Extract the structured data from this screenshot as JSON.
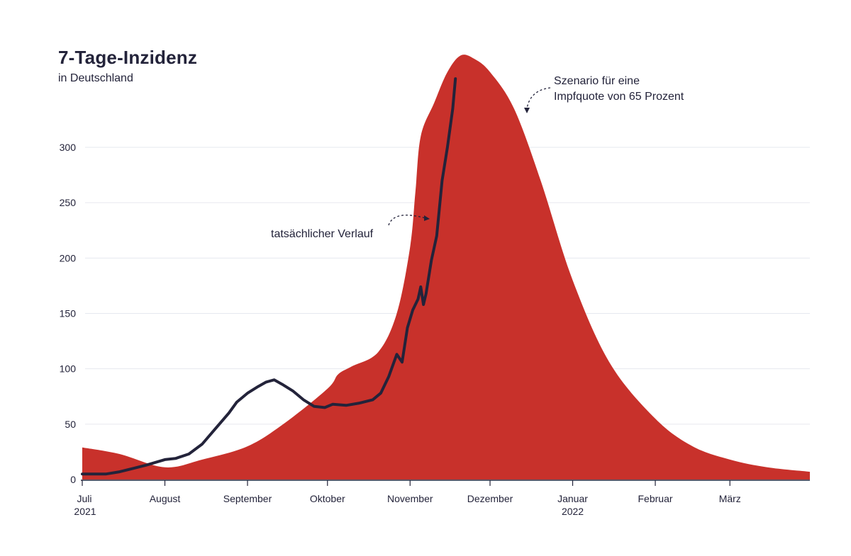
{
  "title": "7-Tage-Inzidenz",
  "subtitle": "in Deutschland",
  "annotations": {
    "scenario_line1": "Szenario für eine",
    "scenario_line2": "Impfquote von 65 Prozent",
    "actual": "tatsächlicher Verlauf"
  },
  "colors": {
    "scenario_area": "#c8312b",
    "actual_line": "#23233a",
    "grid": "#e6e8ef",
    "axis": "#23233a"
  },
  "chart_data": {
    "type": "area",
    "title": "7-Tage-Inzidenz",
    "subtitle": "in Deutschland",
    "x_axis": {
      "start": "2021-07-01",
      "end": "2022-03-31",
      "ticks": [
        {
          "label": "Juli",
          "sublabel": "2021",
          "date": "2021-07-01"
        },
        {
          "label": "August",
          "sublabel": "",
          "date": "2021-08-01"
        },
        {
          "label": "September",
          "sublabel": "",
          "date": "2021-09-01"
        },
        {
          "label": "Oktober",
          "sublabel": "",
          "date": "2021-10-01"
        },
        {
          "label": "November",
          "sublabel": "",
          "date": "2021-11-01"
        },
        {
          "label": "Dezember",
          "sublabel": "",
          "date": "2021-12-01"
        },
        {
          "label": "Januar",
          "sublabel": "2022",
          "date": "2022-01-01"
        },
        {
          "label": "Februar",
          "sublabel": "",
          "date": "2022-02-01"
        },
        {
          "label": "März",
          "sublabel": "",
          "date": "2022-03-01"
        }
      ]
    },
    "y_axis": {
      "min": 0,
      "max": 385,
      "ticks": [
        0,
        50,
        100,
        150,
        200,
        250,
        300
      ],
      "grid": true
    },
    "series": [
      {
        "name": "Szenario für eine Impfquote von 65 Prozent",
        "kind": "area",
        "points": [
          [
            "2021-07-01",
            29
          ],
          [
            "2021-07-15",
            23
          ],
          [
            "2021-08-01",
            11
          ],
          [
            "2021-08-15",
            18
          ],
          [
            "2021-09-01",
            30
          ],
          [
            "2021-09-15",
            51
          ],
          [
            "2021-10-01",
            82
          ],
          [
            "2021-10-05",
            95
          ],
          [
            "2021-10-10",
            102
          ],
          [
            "2021-10-20",
            115
          ],
          [
            "2021-10-27",
            150
          ],
          [
            "2021-11-01",
            210
          ],
          [
            "2021-11-03",
            260
          ],
          [
            "2021-11-05",
            310
          ],
          [
            "2021-11-10",
            340
          ],
          [
            "2021-11-15",
            368
          ],
          [
            "2021-11-20",
            383
          ],
          [
            "2021-11-25",
            380
          ],
          [
            "2021-12-01",
            368
          ],
          [
            "2021-12-10",
            335
          ],
          [
            "2021-12-20",
            270
          ],
          [
            "2022-01-01",
            180
          ],
          [
            "2022-01-15",
            105
          ],
          [
            "2022-02-01",
            55
          ],
          [
            "2022-02-15",
            30
          ],
          [
            "2022-03-01",
            18
          ],
          [
            "2022-03-15",
            11
          ],
          [
            "2022-03-31",
            7
          ]
        ]
      },
      {
        "name": "tatsächlicher Verlauf",
        "kind": "line",
        "points": [
          [
            "2021-07-01",
            5
          ],
          [
            "2021-07-10",
            5
          ],
          [
            "2021-07-15",
            7
          ],
          [
            "2021-07-20",
            10
          ],
          [
            "2021-07-25",
            13
          ],
          [
            "2021-08-01",
            18
          ],
          [
            "2021-08-05",
            19
          ],
          [
            "2021-08-10",
            23
          ],
          [
            "2021-08-15",
            32
          ],
          [
            "2021-08-20",
            46
          ],
          [
            "2021-08-25",
            60
          ],
          [
            "2021-08-28",
            70
          ],
          [
            "2021-09-01",
            78
          ],
          [
            "2021-09-05",
            84
          ],
          [
            "2021-09-08",
            88
          ],
          [
            "2021-09-11",
            90
          ],
          [
            "2021-09-14",
            86
          ],
          [
            "2021-09-18",
            80
          ],
          [
            "2021-09-22",
            72
          ],
          [
            "2021-09-26",
            66
          ],
          [
            "2021-09-30",
            65
          ],
          [
            "2021-10-03",
            68
          ],
          [
            "2021-10-08",
            67
          ],
          [
            "2021-10-13",
            69
          ],
          [
            "2021-10-18",
            72
          ],
          [
            "2021-10-21",
            78
          ],
          [
            "2021-10-24",
            93
          ],
          [
            "2021-10-27",
            113
          ],
          [
            "2021-10-29",
            106
          ],
          [
            "2021-10-31",
            137
          ],
          [
            "2021-11-02",
            153
          ],
          [
            "2021-11-04",
            163
          ],
          [
            "2021-11-05",
            174
          ],
          [
            "2021-11-06",
            158
          ],
          [
            "2021-11-07",
            168
          ],
          [
            "2021-11-09",
            198
          ],
          [
            "2021-11-11",
            220
          ],
          [
            "2021-11-13",
            270
          ],
          [
            "2021-11-15",
            300
          ],
          [
            "2021-11-17",
            335
          ],
          [
            "2021-11-18",
            362
          ]
        ]
      }
    ]
  }
}
